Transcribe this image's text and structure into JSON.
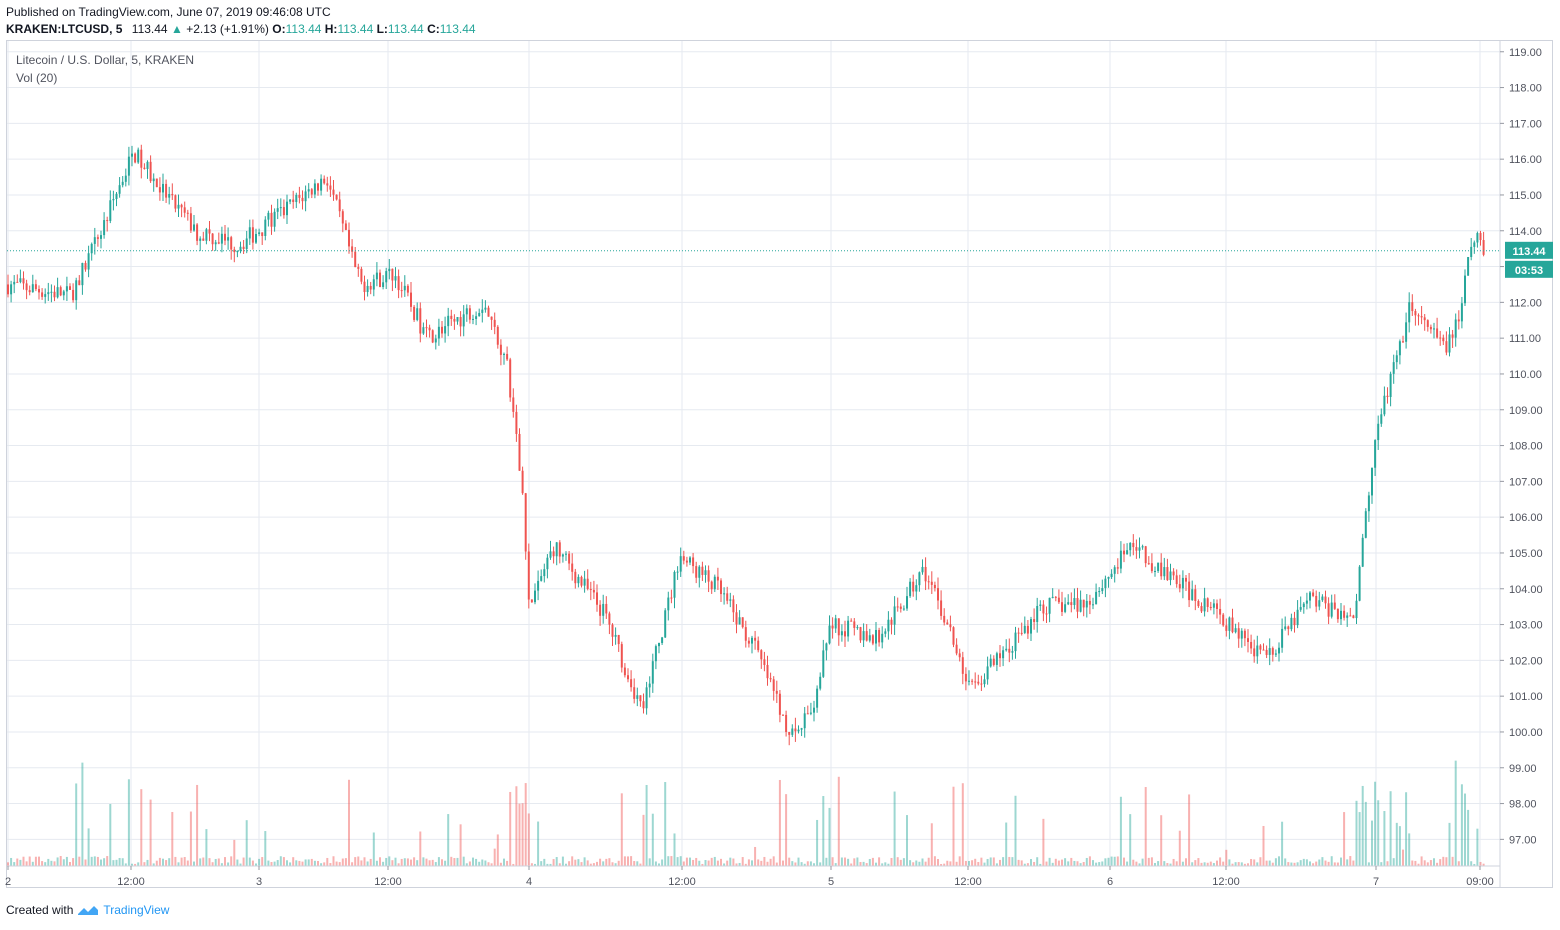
{
  "header": {
    "published": "Published on TradingView.com, June 07, 2019 09:46:08 UTC",
    "symbol": "KRAKEN:LTCUSD, 5",
    "last": "113.44",
    "change": "+2.13 (+1.91%)",
    "open_label": "O:",
    "open": "113.44",
    "high_label": "H:",
    "high": "113.44",
    "low_label": "L:",
    "low": "113.44",
    "close_label": "C:",
    "close": "113.44"
  },
  "legend": {
    "title": "Litecoin / U.S. Dollar, 5, KRAKEN",
    "volume": "Vol (20)"
  },
  "price_badge": {
    "price": "113.44",
    "countdown": "03:53"
  },
  "footer": {
    "created_with": "Created with",
    "brand": "TradingView"
  },
  "colors": {
    "up": "#26a69a",
    "down": "#ef5350",
    "grid": "#e6eaf0",
    "price_line": "#26a69a"
  },
  "chart_data": {
    "type": "line",
    "title": "Litecoin / U.S. Dollar, 5, KRAKEN",
    "ylim": [
      96.2,
      119.1
    ],
    "y_ticks": [
      "119.00",
      "118.00",
      "117.00",
      "116.00",
      "115.00",
      "114.00",
      "113.00",
      "112.00",
      "111.00",
      "110.00",
      "109.00",
      "108.00",
      "107.00",
      "106.00",
      "105.00",
      "104.00",
      "103.00",
      "102.00",
      "101.00",
      "100.00",
      "99.00",
      "98.00",
      "97.00"
    ],
    "x_ticks": [
      "2",
      "12:00",
      "3",
      "12:00",
      "4",
      "12:00",
      "5",
      "12:00",
      "6",
      "12:00",
      "7",
      "09:00"
    ],
    "series": [
      {
        "x": [
          "Jun 2",
          "Jun 2 06:00",
          "Jun 2 08:00",
          "Jun 2 12:00",
          "Jun 2 14:00",
          "Jun 2 18:00",
          "Jun 2 22:00",
          "Jun 3 02:00",
          "Jun 3 06:00",
          "Jun 3 09:00",
          "Jun 3 12:00",
          "Jun 3 15:00",
          "Jun 3 20:00",
          "Jun 3 22:00",
          "Jun 3 23:30",
          "Jun 4 00:00",
          "Jun 4 02:00",
          "Jun 4 06:00",
          "Jun 4 09:00",
          "Jun 4 12:00",
          "Jun 4 15:00",
          "Jun 4 18:00",
          "Jun 4 21:00",
          "Jun 4 22:30",
          "Jun 5 00:00",
          "Jun 5 04:00",
          "Jun 5 08:00",
          "Jun 5 10:00",
          "Jun 5 12:00",
          "Jun 5 16:00",
          "Jun 5 18:00",
          "Jun 5 22:00",
          "Jun 6 02:00",
          "Jun 6 06:00",
          "Jun 6 10:00",
          "Jun 6 14:00",
          "Jun 6 18:00",
          "Jun 6 22:00",
          "Jun 7 00:00",
          "Jun 7 03:00",
          "Jun 7 06:00",
          "Jun 7 07:00",
          "Jun 7 09:00",
          "Jun 7 09:45"
        ],
        "values": [
          112.5,
          112.2,
          113.4,
          116.2,
          115.4,
          114.0,
          113.6,
          114.5,
          115.5,
          112.5,
          112.8,
          111.0,
          112.0,
          110.3,
          106.5,
          103.5,
          105.2,
          103.3,
          100.6,
          104.9,
          104.0,
          102.3,
          99.8,
          100.6,
          103.0,
          102.6,
          104.5,
          103.0,
          101.2,
          102.6,
          103.5,
          103.6,
          105.2,
          104.2,
          103.2,
          102.0,
          103.7,
          103.2,
          108.3,
          111.8,
          110.8,
          111.0,
          114.1,
          113.44
        ]
      }
    ]
  }
}
